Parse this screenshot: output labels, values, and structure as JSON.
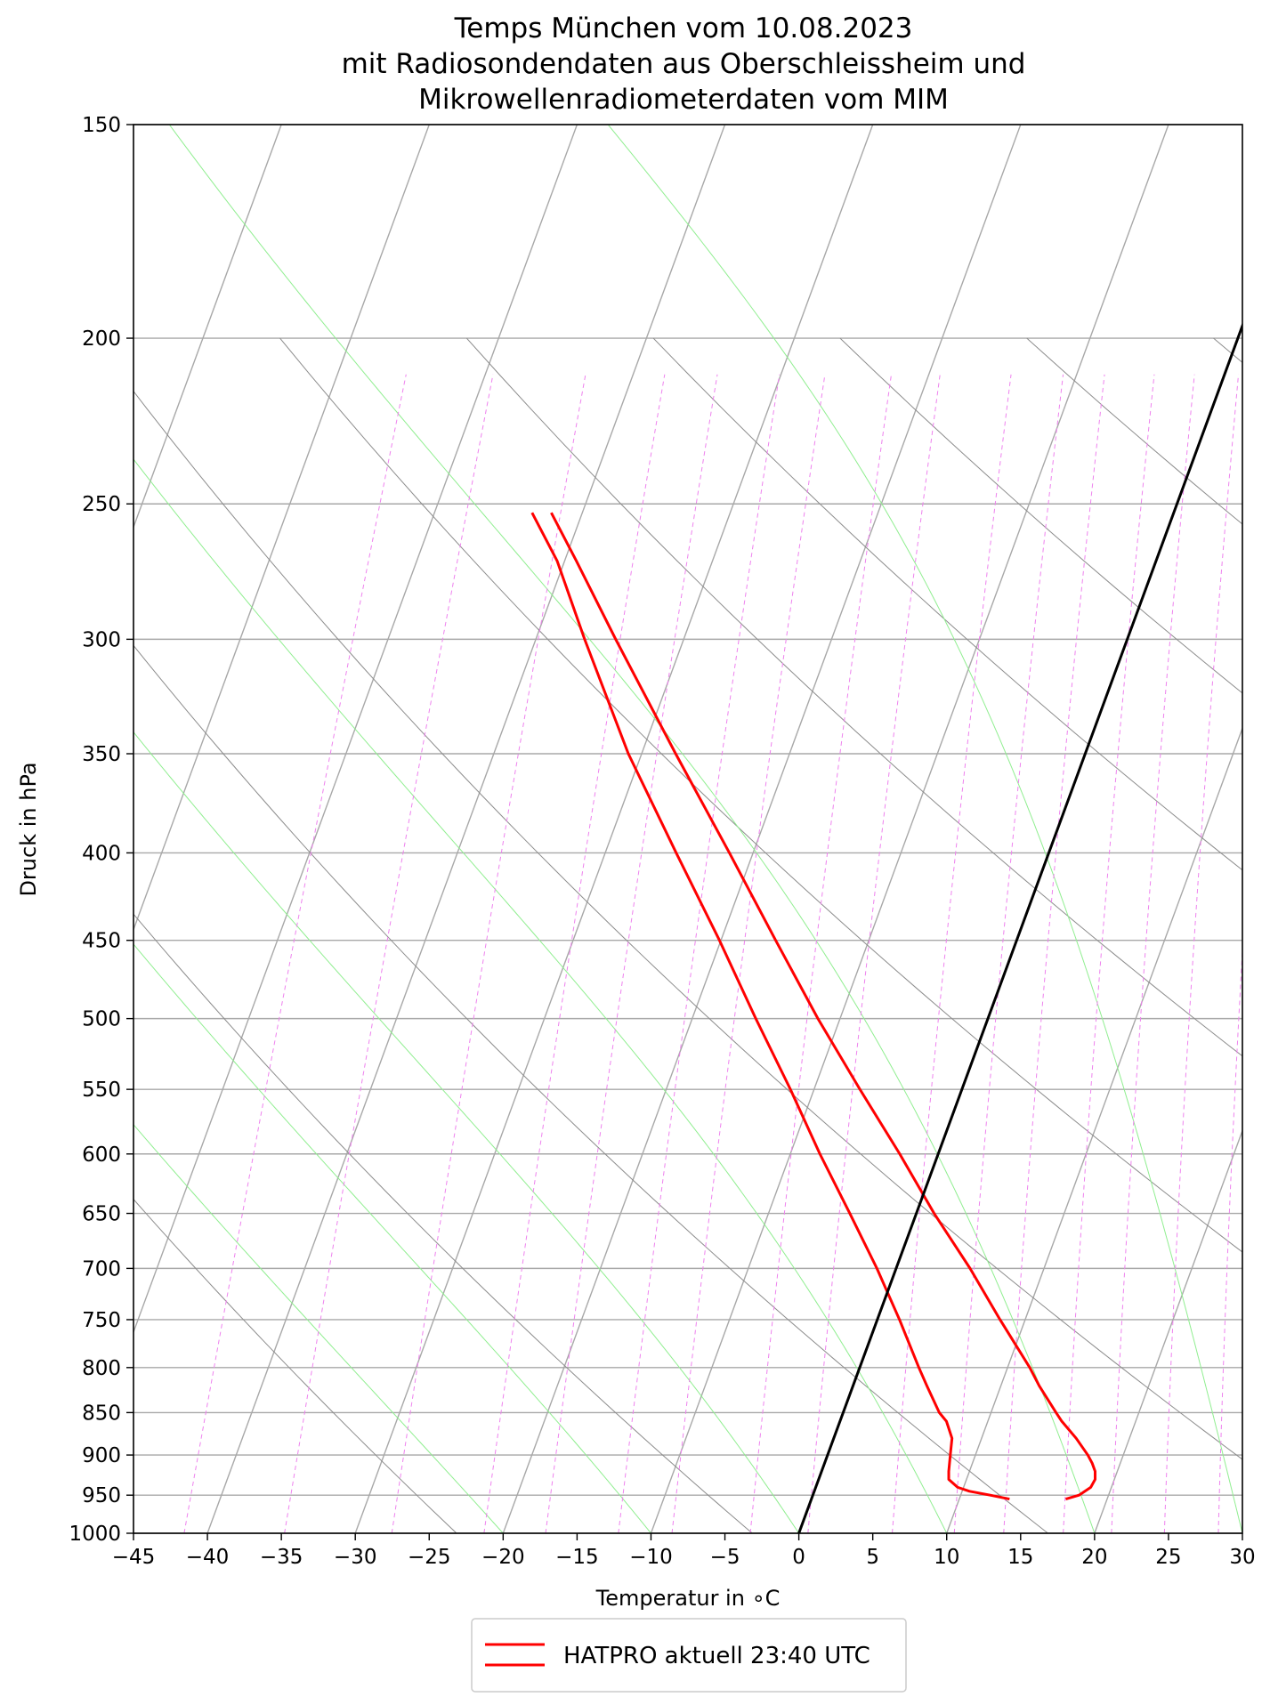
{
  "chart_data": {
    "type": "line",
    "subtype": "skew-T log-p diagram",
    "title_lines": [
      "Temps München vom 10.08.2023",
      "mit Radiosondendaten aus Oberschleissheim und",
      "Mikrowellenradiometerdaten vom MIM"
    ],
    "xlabel": "Temperatur in ∘C",
    "ylabel": "Druck in hPa",
    "xlim": [
      -45,
      30
    ],
    "ylim": [
      1000,
      150
    ],
    "y_scale": "log",
    "skew": 35,
    "grid": true,
    "x_ticks": [
      -45,
      -40,
      -35,
      -30,
      -25,
      -20,
      -15,
      -10,
      -5,
      0,
      5,
      10,
      15,
      20,
      25,
      30
    ],
    "x_tick_labels": [
      "−45",
      "−40",
      "−35",
      "−30",
      "−25",
      "−20",
      "−15",
      "−10",
      "−5",
      "0",
      "5",
      "10",
      "15",
      "20",
      "25",
      "30"
    ],
    "y_ticks": [
      150,
      200,
      250,
      300,
      350,
      400,
      450,
      500,
      550,
      600,
      650,
      700,
      750,
      800,
      850,
      900,
      950,
      1000
    ],
    "y_tick_labels": [
      "150",
      "200",
      "250",
      "300",
      "350",
      "400",
      "450",
      "500",
      "550",
      "600",
      "650",
      "700",
      "750",
      "800",
      "850",
      "900",
      "950",
      "1000"
    ],
    "isotherm_temps": [
      -160,
      -150,
      -140,
      -130,
      -120,
      -110,
      -100,
      -90,
      -80,
      -70,
      -60,
      -50,
      -40,
      -30,
      -20,
      -10,
      0,
      10,
      20,
      30,
      40
    ],
    "dry_adiabat_thetas_K": [
      250,
      270,
      290,
      310,
      330,
      350,
      370,
      390,
      410,
      430,
      450
    ],
    "moist_adiabat_start_temps": [
      -20,
      -10,
      0,
      10,
      20,
      30
    ],
    "mixing_ratios_gkg": [
      0.1,
      0.2,
      0.4,
      0.7,
      1,
      1.5,
      2,
      3,
      4,
      6,
      8,
      10,
      13,
      16,
      20,
      25,
      30,
      40
    ],
    "highlighted_isotherm": 0,
    "series": [
      {
        "name": "HATPRO aktuell 23:40 UTC",
        "color": "#ff0000",
        "kind": "temperature",
        "p": [
          955,
          950,
          940,
          930,
          920,
          910,
          900,
          880,
          860,
          850,
          820,
          800,
          750,
          700,
          650,
          600,
          550,
          500,
          450,
          400,
          350,
          300,
          270,
          253
        ],
        "t": [
          17.2,
          18.0,
          18.6,
          18.7,
          18.5,
          18.1,
          17.6,
          16.4,
          15.0,
          14.4,
          12.6,
          11.5,
          8.3,
          5.0,
          1.2,
          -2.6,
          -6.9,
          -11.5,
          -16.3,
          -21.6,
          -27.7,
          -34.6,
          -39.2,
          -42.1
        ]
      },
      {
        "name": "HATPRO aktuell 23:40 UTC",
        "color": "#ff0000",
        "kind": "dewpoint",
        "p": [
          955,
          950,
          945,
          940,
          930,
          920,
          900,
          880,
          860,
          850,
          820,
          800,
          750,
          700,
          650,
          600,
          550,
          500,
          450,
          400,
          350,
          300,
          270,
          253
        ],
        "t": [
          13.4,
          12.0,
          10.5,
          9.6,
          8.8,
          8.6,
          8.3,
          8.0,
          7.2,
          6.5,
          5.0,
          4.0,
          1.5,
          -1.3,
          -4.5,
          -8.0,
          -11.6,
          -15.7,
          -20.1,
          -25.2,
          -30.9,
          -36.7,
          -40.5,
          -43.4
        ]
      },
      {
        "name": "",
        "color": "#000000",
        "kind": "0 °C isotherm",
        "p": [
          1000,
          150
        ],
        "t": [
          0,
          0
        ]
      }
    ],
    "legend": {
      "position": "bottom-center",
      "entries": [
        "HATPRO aktuell 23:40 UTC"
      ]
    },
    "colors": {
      "isotherm": "#a8a8a8",
      "dry_adiabat": "#8c8c8c",
      "moist_adiabat": "#90ee90",
      "mixing_ratio": "#ee82ee",
      "profile": "#ff0000"
    }
  }
}
